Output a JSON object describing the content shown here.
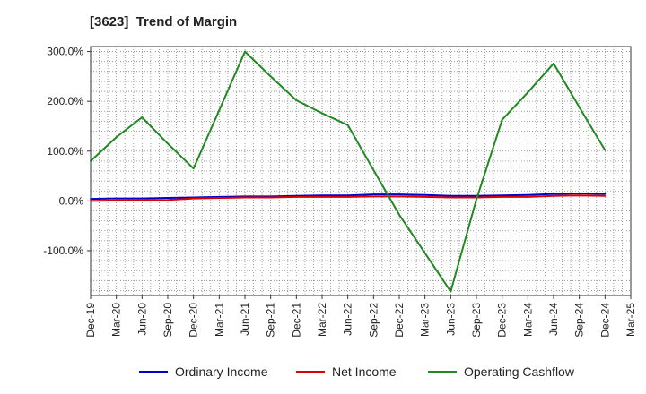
{
  "chart_data": {
    "type": "line",
    "title": "[3623]  Trend of Margin",
    "xlabel": "",
    "ylabel": "",
    "ylim": [
      -190,
      310
    ],
    "yticks": [
      -100,
      0,
      100,
      200,
      300
    ],
    "ytick_labels": [
      "-100.0%",
      "0.0%",
      "100.0%",
      "200.0%",
      "300.0%"
    ],
    "grid": true,
    "legend_position": "bottom",
    "categories": [
      "Dec-19",
      "Mar-20",
      "Jun-20",
      "Sep-20",
      "Dec-20",
      "Mar-21",
      "Jun-21",
      "Sep-21",
      "Dec-21",
      "Mar-22",
      "Jun-22",
      "Sep-22",
      "Dec-22",
      "Mar-23",
      "Jun-23",
      "Sep-23",
      "Dec-23",
      "Mar-24",
      "Jun-24",
      "Sep-24",
      "Dec-24",
      "Mar-25"
    ],
    "series": [
      {
        "name": "Ordinary Income",
        "color": "#0000cc",
        "values": [
          4,
          5,
          5,
          6,
          7,
          8,
          9,
          9,
          10,
          11,
          11,
          13,
          13,
          12,
          10,
          10,
          11,
          12,
          14,
          15,
          14,
          null
        ]
      },
      {
        "name": "Net Income",
        "color": "#dd0000",
        "values": [
          0,
          1,
          1,
          2,
          5,
          6,
          7,
          7,
          8,
          8,
          8,
          9,
          9,
          8,
          7,
          7,
          8,
          8,
          10,
          11,
          10,
          null
        ]
      },
      {
        "name": "Operating Cashflow",
        "color": "#228822",
        "values": [
          80,
          128,
          168,
          115,
          65,
          182,
          300,
          250,
          202,
          176,
          152,
          62,
          -28,
          -105,
          -182,
          3,
          163,
          218,
          276,
          188,
          102,
          null
        ]
      }
    ]
  }
}
